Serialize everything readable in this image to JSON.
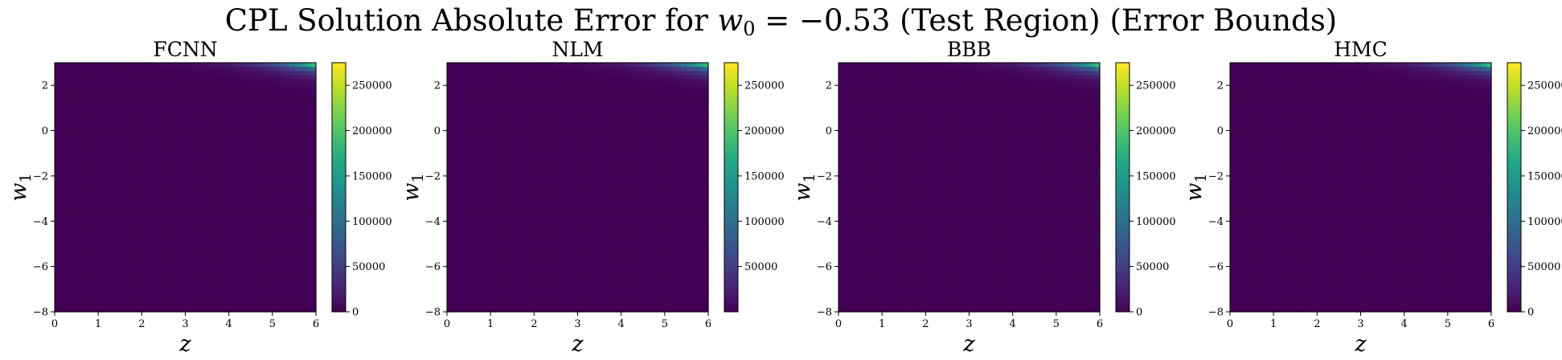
{
  "figure_title": {
    "prefix": "CPL Solution Absolute Error for ",
    "var": "w",
    "sub": "0",
    "eq": " = −0.53 (Test Region) (Error Bounds)"
  },
  "chart_data": [
    {
      "type": "heatmap",
      "title": "FCNN",
      "xlabel": "z",
      "ylabel": "w1",
      "xlim": [
        0,
        6
      ],
      "ylim": [
        -8,
        3
      ],
      "x_ticks": [
        "0",
        "1",
        "2",
        "3",
        "4",
        "5",
        "6"
      ],
      "y_ticks": [
        "−8",
        "−6",
        "−4",
        "−2",
        "0",
        "2"
      ],
      "colorbar_range": [
        0,
        275000
      ],
      "colorbar_ticks": [
        "0",
        "50000",
        "100000",
        "150000",
        "200000",
        "250000"
      ],
      "colormap": "viridis",
      "peak_value": 275000,
      "peak_location": {
        "z": 6,
        "w1": 3
      }
    },
    {
      "type": "heatmap",
      "title": "NLM",
      "xlabel": "z",
      "ylabel": "w1",
      "xlim": [
        0,
        6
      ],
      "ylim": [
        -8,
        3
      ],
      "x_ticks": [
        "0",
        "1",
        "2",
        "3",
        "4",
        "5",
        "6"
      ],
      "y_ticks": [
        "−8",
        "−6",
        "−4",
        "−2",
        "0",
        "2"
      ],
      "colorbar_range": [
        0,
        275000
      ],
      "colorbar_ticks": [
        "50000",
        "100000",
        "150000",
        "200000",
        "250000"
      ],
      "colormap": "viridis",
      "peak_value": 275000,
      "peak_location": {
        "z": 6,
        "w1": 3
      }
    },
    {
      "type": "heatmap",
      "title": "BBB",
      "xlabel": "z",
      "ylabel": "w1",
      "xlim": [
        0,
        6
      ],
      "ylim": [
        -8,
        3
      ],
      "x_ticks": [
        "0",
        "1",
        "2",
        "3",
        "4",
        "5",
        "6"
      ],
      "y_ticks": [
        "−8",
        "−6",
        "−4",
        "−2",
        "0",
        "2"
      ],
      "colorbar_range": [
        0,
        275000
      ],
      "colorbar_ticks": [
        "0",
        "50000",
        "100000",
        "150000",
        "200000",
        "250000"
      ],
      "colormap": "viridis",
      "peak_value": 275000,
      "peak_location": {
        "z": 6,
        "w1": 3
      }
    },
    {
      "type": "heatmap",
      "title": "HMC",
      "xlabel": "z",
      "ylabel": "w1",
      "xlim": [
        0,
        6
      ],
      "ylim": [
        -8,
        3
      ],
      "x_ticks": [
        "0",
        "1",
        "2",
        "3",
        "4",
        "5",
        "6"
      ],
      "y_ticks": [
        "−8",
        "−6",
        "−4",
        "−2",
        "0",
        "2"
      ],
      "colorbar_range": [
        0,
        275000
      ],
      "colorbar_ticks": [
        "0",
        "50000",
        "100000",
        "150000",
        "200000",
        "250000"
      ],
      "colormap": "viridis",
      "peak_value": 275000,
      "peak_location": {
        "z": 6,
        "w1": 3
      }
    }
  ],
  "colors": {
    "viridis_low": "#440154",
    "viridis_mid": "#21918c",
    "viridis_high": "#fde725"
  }
}
